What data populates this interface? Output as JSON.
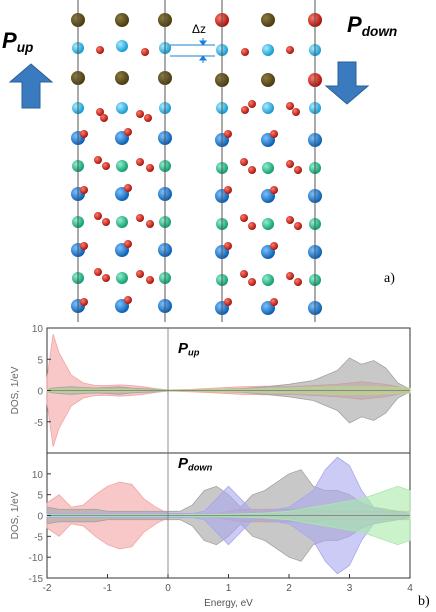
{
  "panel_a": {
    "label": "a)",
    "pol_up": {
      "symbol": "P",
      "subscript": "up"
    },
    "pol_down": {
      "symbol": "P",
      "subscript": "down"
    },
    "dz_label": "Δz",
    "colors": {
      "arrow": "#3a7bbf",
      "atom_brown": "#5a4a18",
      "atom_red": "#c0261e",
      "atom_cyan": "#2fc0e6",
      "atom_blue": "#1e7fd6",
      "atom_green": "#27c495"
    }
  },
  "panel_b": {
    "label": "b)",
    "top_title": {
      "symbol": "P",
      "subscript": "up"
    },
    "bottom_title": {
      "symbol": "P",
      "subscript": "down"
    }
  },
  "chart_data": [
    {
      "type": "area",
      "title": "Pup",
      "ylabel": "DOS, 1/eV",
      "xlabel": "",
      "xlim": [
        -2,
        4
      ],
      "ylim": [
        -10,
        10
      ],
      "yticks": [
        "10",
        "5",
        "0",
        "-5"
      ],
      "legend": "none",
      "x": [
        -2.0,
        -1.9,
        -1.8,
        -1.6,
        -1.4,
        -1.2,
        -1.0,
        -0.8,
        -0.6,
        -0.4,
        -0.2,
        0.0,
        0.4,
        0.8,
        1.2,
        1.6,
        2.0,
        2.4,
        2.8,
        3.0,
        3.2,
        3.4,
        3.6,
        3.8,
        4.0
      ],
      "series": [
        {
          "color": "#f4a3a3",
          "values": [
            2,
            9,
            6,
            2.5,
            1.2,
            0.8,
            0.8,
            0.9,
            0.8,
            0.6,
            0.3,
            0.1,
            0.2,
            0.4,
            0.6,
            0.7,
            0.6,
            0.8,
            1.0,
            1.2,
            1.4,
            1.2,
            1.0,
            0.6,
            0.2
          ]
        },
        {
          "color": "#a3a3a3",
          "values": [
            0.2,
            0.4,
            0.5,
            0.6,
            0.5,
            0.4,
            0.5,
            0.6,
            0.4,
            0.3,
            0.2,
            0.1,
            0.1,
            0.2,
            0.3,
            0.6,
            1.0,
            1.6,
            3.2,
            5.2,
            4.2,
            4.8,
            3.6,
            1.2,
            0.2
          ]
        },
        {
          "color": "#b8d98c",
          "values": [
            0.2,
            0.2,
            0.3,
            0.3,
            0.3,
            0.2,
            0.2,
            0.2,
            0.2,
            0.1,
            0.1,
            0.1,
            0.1,
            0.2,
            0.2,
            0.3,
            0.4,
            0.5,
            0.6,
            0.6,
            0.6,
            0.6,
            0.5,
            0.5,
            0.4
          ]
        }
      ]
    },
    {
      "type": "area",
      "title": "Pdown",
      "ylabel": "DOS, 1/eV",
      "xlabel": "Energy, eV",
      "xlim": [
        -2,
        4
      ],
      "ylim": [
        -15,
        15
      ],
      "xticks": [
        "-2",
        "-1",
        "0",
        "1",
        "2",
        "3",
        "4"
      ],
      "yticks": [
        "10",
        "5",
        "0",
        "-5",
        "-10",
        "-15"
      ],
      "legend": "none",
      "x": [
        -2.0,
        -1.8,
        -1.6,
        -1.4,
        -1.2,
        -1.0,
        -0.8,
        -0.6,
        -0.4,
        -0.2,
        0.0,
        0.2,
        0.4,
        0.6,
        0.8,
        1.0,
        1.2,
        1.4,
        1.6,
        1.8,
        2.0,
        2.2,
        2.4,
        2.6,
        2.8,
        3.0,
        3.2,
        3.4,
        3.6,
        3.8,
        4.0
      ],
      "series": [
        {
          "color": "#f4a3a3",
          "values": [
            3,
            5,
            2,
            2.5,
            5,
            7,
            8,
            7.5,
            4,
            2,
            0.5,
            0.5,
            0.5,
            0.5,
            0.5,
            1,
            1.5,
            1.5,
            1.5,
            1.5,
            1.5,
            1.5,
            1.5,
            1,
            1,
            1,
            1,
            1,
            1,
            1,
            1
          ]
        },
        {
          "color": "#a3a3a3",
          "values": [
            2,
            1.5,
            1.5,
            1.5,
            1.5,
            1,
            1,
            1,
            1,
            1,
            1,
            1,
            2.5,
            6,
            7,
            5,
            2,
            5,
            6,
            8,
            10,
            11,
            7,
            6,
            6,
            5,
            3,
            2,
            1.5,
            1,
            0.5
          ]
        },
        {
          "color": "#a8a8ee",
          "values": [
            0.5,
            0.5,
            0.5,
            0.5,
            0.5,
            0.5,
            0.5,
            0.5,
            0.5,
            0.5,
            0.5,
            0.5,
            0.5,
            1,
            4,
            7,
            4,
            1,
            1,
            1.5,
            2,
            4,
            6,
            11,
            14,
            12,
            6,
            2,
            1,
            0.5,
            0.5
          ]
        },
        {
          "color": "#a8eaa8",
          "values": [
            0.2,
            0.2,
            0.2,
            0.2,
            0.2,
            0.2,
            0.2,
            0.2,
            0.2,
            0.2,
            0.2,
            0.2,
            0.3,
            0.3,
            0.3,
            0.3,
            0.4,
            0.5,
            0.6,
            0.8,
            1,
            1.5,
            2,
            2.5,
            3,
            3.5,
            4,
            5,
            6,
            7,
            6
          ]
        }
      ]
    }
  ]
}
